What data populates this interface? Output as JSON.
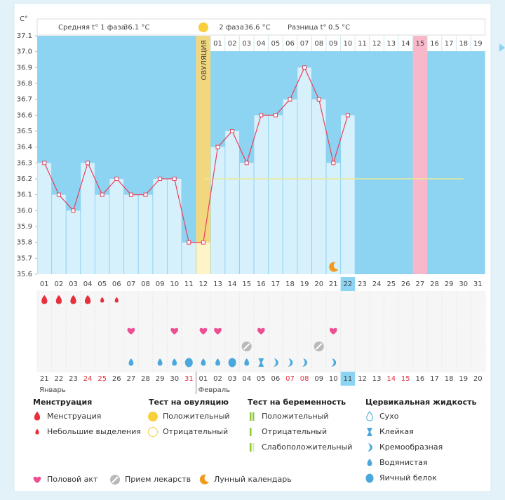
{
  "chart_data": {
    "type": "line",
    "y_axis_label": "C°",
    "phase1_label": "Средняя t° 1 фаза",
    "phase1_avg": "36.1 °C",
    "phase2_label": "2 фаза",
    "phase2_avg": "36.6 °C",
    "diff_label": "Разница t°",
    "diff_value": "0.5 °C",
    "ovulation_label": "ОВУЛЯЦИЯ",
    "ovulation_day": "12",
    "pink_day": "27",
    "today": "22",
    "categories": [
      "01",
      "02",
      "03",
      "04",
      "05",
      "06",
      "07",
      "08",
      "09",
      "10",
      "11",
      "12",
      "13",
      "14",
      "15",
      "16",
      "17",
      "18",
      "19",
      "20",
      "21",
      "22",
      "23",
      "24",
      "25",
      "26",
      "27",
      "28",
      "29",
      "30",
      "31"
    ],
    "phase2_days": [
      "01",
      "02",
      "03",
      "04",
      "05",
      "06",
      "07",
      "08",
      "09",
      "10",
      "11",
      "12",
      "13",
      "14",
      "15",
      "16",
      "17",
      "18",
      "19"
    ],
    "dates": [
      "21",
      "22",
      "23",
      "24",
      "25",
      "26",
      "27",
      "28",
      "29",
      "30",
      "31",
      "01",
      "02",
      "03",
      "04",
      "05",
      "06",
      "07",
      "08",
      "09",
      "10",
      "11",
      "12",
      "13",
      "14",
      "15",
      "16",
      "17",
      "18",
      "19",
      "20"
    ],
    "red_days": [
      "04",
      "05",
      "11",
      "18",
      "19",
      "25",
      "26"
    ],
    "months": [
      {
        "name": "Январь",
        "day": "01"
      },
      {
        "name": "Февраль",
        "day": "12"
      }
    ],
    "values": [
      36.3,
      36.1,
      36.0,
      36.3,
      36.1,
      36.2,
      36.1,
      36.1,
      36.2,
      36.2,
      35.8,
      35.8,
      36.4,
      36.5,
      36.3,
      36.6,
      36.6,
      36.7,
      36.9,
      36.7,
      36.3,
      36.6,
      null,
      null,
      null,
      null,
      null,
      null,
      null,
      null,
      null
    ],
    "color": "#e8405c",
    "coverline": 36.2,
    "ylim": [
      35.6,
      37.1
    ],
    "yticks": [
      35.6,
      35.7,
      35.8,
      35.9,
      {
        "value": 36.0,
        "label": "36.0"
      },
      36.1,
      36.2,
      36.3,
      36.4,
      36.5,
      36.6,
      36.7,
      36.8,
      36.9,
      {
        "value": 37.0,
        "label": "37.0"
      },
      37.1
    ],
    "legend": [
      {
        "title": "Менструация",
        "items": [
          {
            "name": "Менструация",
            "days": [
              "01",
              "02",
              "03",
              "04"
            ]
          },
          {
            "name": "Небольшие выделения",
            "days": [
              "05",
              "06"
            ]
          }
        ]
      },
      {
        "title": "Тест на овуляцию",
        "items": [
          {
            "name": "Положительный"
          },
          {
            "name": "Отрицательный"
          }
        ]
      },
      {
        "title": "Тест на беременность",
        "items": [
          {
            "name": "Положительный"
          },
          {
            "name": "Отрицательный"
          },
          {
            "name": "Слабоположительный"
          }
        ]
      },
      {
        "title": "Цервикальная жидкость",
        "items": [
          {
            "name": "Сухо"
          },
          {
            "name": "Клейкая",
            "days": [
              "16"
            ]
          },
          {
            "name": "Кремообразная",
            "days": [
              "17",
              "18",
              "19",
              "21"
            ]
          },
          {
            "name": "Водянистая",
            "days": [
              "07",
              "09",
              "10",
              "12",
              "13",
              "15"
            ]
          },
          {
            "name": "Яичный белок",
            "days": [
              "11",
              "14"
            ]
          }
        ]
      }
    ],
    "extras": [
      {
        "name": "Половой акт",
        "days": [
          "07",
          "10",
          "12",
          "13",
          "16",
          "21"
        ]
      },
      {
        "name": "Прием лекарств",
        "days": [
          "15",
          "20"
        ]
      },
      {
        "name": "Лунный календарь",
        "days": [
          "21"
        ]
      }
    ]
  }
}
